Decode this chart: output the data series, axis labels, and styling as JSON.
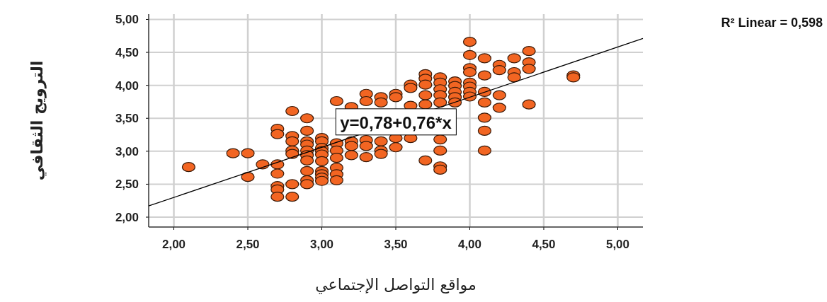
{
  "chart_data": {
    "type": "scatter",
    "xlabel": "مواقع التواصل الإجتماعي",
    "ylabel": "الترويج الثقافي",
    "xlim": [
      1.83,
      5.17
    ],
    "ylim": [
      1.85,
      5.08
    ],
    "xticks": [
      {
        "value": 2,
        "label": "2,00"
      },
      {
        "value": 2.5,
        "label": "2,50"
      },
      {
        "value": 3,
        "label": "3,00"
      },
      {
        "value": 3.5,
        "label": "3,50"
      },
      {
        "value": 4,
        "label": "4,00"
      },
      {
        "value": 4.5,
        "label": "4,50"
      },
      {
        "value": 5,
        "label": "5,00"
      }
    ],
    "yticks": [
      {
        "value": 2,
        "label": "2,00"
      },
      {
        "value": 2.5,
        "label": "2,50"
      },
      {
        "value": 3,
        "label": "3,00"
      },
      {
        "value": 3.5,
        "label": "3,50"
      },
      {
        "value": 4,
        "label": "4,00"
      },
      {
        "value": 4.5,
        "label": "4,50"
      },
      {
        "value": 5,
        "label": "5,00"
      }
    ],
    "grid": true,
    "marker": "circle",
    "series": [
      {
        "color": "#f26522",
        "x": [
          2.1,
          2.4,
          2.5,
          2.5,
          2.6,
          2.7,
          2.7,
          2.7,
          2.7,
          2.7,
          2.7,
          2.7,
          2.8,
          2.8,
          2.8,
          2.8,
          2.8,
          2.8,
          2.8,
          2.9,
          2.9,
          2.9,
          2.9,
          2.9,
          2.9,
          2.9,
          2.9,
          2.9,
          2.9,
          3.0,
          3.0,
          3.0,
          3.0,
          3.0,
          3.0,
          3.0,
          3.0,
          3.0,
          3.0,
          3.1,
          3.1,
          3.1,
          3.1,
          3.1,
          3.1,
          3.1,
          3.2,
          3.2,
          3.2,
          3.2,
          3.3,
          3.3,
          3.3,
          3.3,
          3.3,
          3.4,
          3.4,
          3.4,
          3.4,
          3.4,
          3.5,
          3.5,
          3.5,
          3.5,
          3.6,
          3.6,
          3.6,
          3.6,
          3.7,
          3.7,
          3.7,
          3.7,
          3.7,
          3.7,
          3.8,
          3.8,
          3.8,
          3.8,
          3.8,
          3.8,
          3.8,
          3.8,
          3.8,
          3.9,
          3.9,
          3.9,
          3.9,
          3.9,
          4.0,
          4.0,
          4.0,
          4.0,
          4.0,
          4.0,
          4.0,
          4.0,
          4.1,
          4.1,
          4.1,
          4.1,
          4.1,
          4.1,
          4.1,
          4.2,
          4.2,
          4.2,
          4.2,
          4.3,
          4.3,
          4.3,
          4.4,
          4.4,
          4.4,
          4.4,
          4.7,
          4.7
        ],
        "values": [
          2.76,
          2.97,
          2.97,
          2.61,
          2.8,
          3.34,
          3.26,
          2.8,
          2.66,
          2.47,
          2.42,
          2.31,
          3.61,
          3.23,
          3.15,
          3.01,
          2.96,
          2.5,
          2.31,
          3.5,
          3.31,
          3.15,
          3.1,
          3.01,
          2.94,
          2.86,
          2.7,
          2.56,
          2.5,
          3.2,
          3.15,
          3.05,
          3.0,
          2.95,
          2.85,
          2.7,
          2.65,
          2.6,
          2.55,
          3.76,
          3.12,
          3.01,
          2.9,
          2.75,
          2.65,
          2.56,
          3.67,
          3.15,
          3.08,
          2.94,
          3.87,
          3.76,
          3.17,
          3.08,
          2.91,
          3.82,
          3.74,
          3.15,
          3.01,
          2.96,
          3.87,
          3.82,
          3.2,
          3.06,
          4.01,
          3.96,
          3.69,
          3.2,
          4.17,
          4.1,
          4.01,
          3.85,
          3.71,
          2.86,
          4.12,
          4.04,
          3.94,
          3.85,
          3.74,
          3.18,
          3.01,
          2.77,
          2.72,
          4.06,
          3.99,
          3.9,
          3.82,
          3.74,
          4.66,
          4.46,
          4.26,
          4.2,
          4.04,
          3.98,
          3.9,
          3.83,
          4.41,
          4.15,
          3.9,
          3.74,
          3.51,
          3.31,
          3.01,
          4.31,
          4.23,
          3.85,
          3.66,
          4.41,
          4.2,
          4.12,
          4.52,
          4.35,
          4.25,
          3.71,
          4.15,
          4.12
        ]
      },
      {
        "type": "line",
        "marker": "none",
        "color": "#000000",
        "x": [
          1.83,
          5.17
        ],
        "values": [
          2.17,
          4.71
        ]
      }
    ],
    "annotations": [
      "R² Linear = 0,598",
      {
        "text": "y=0,78+0,76*x",
        "x": 3.5,
        "y": 3.44
      }
    ]
  }
}
